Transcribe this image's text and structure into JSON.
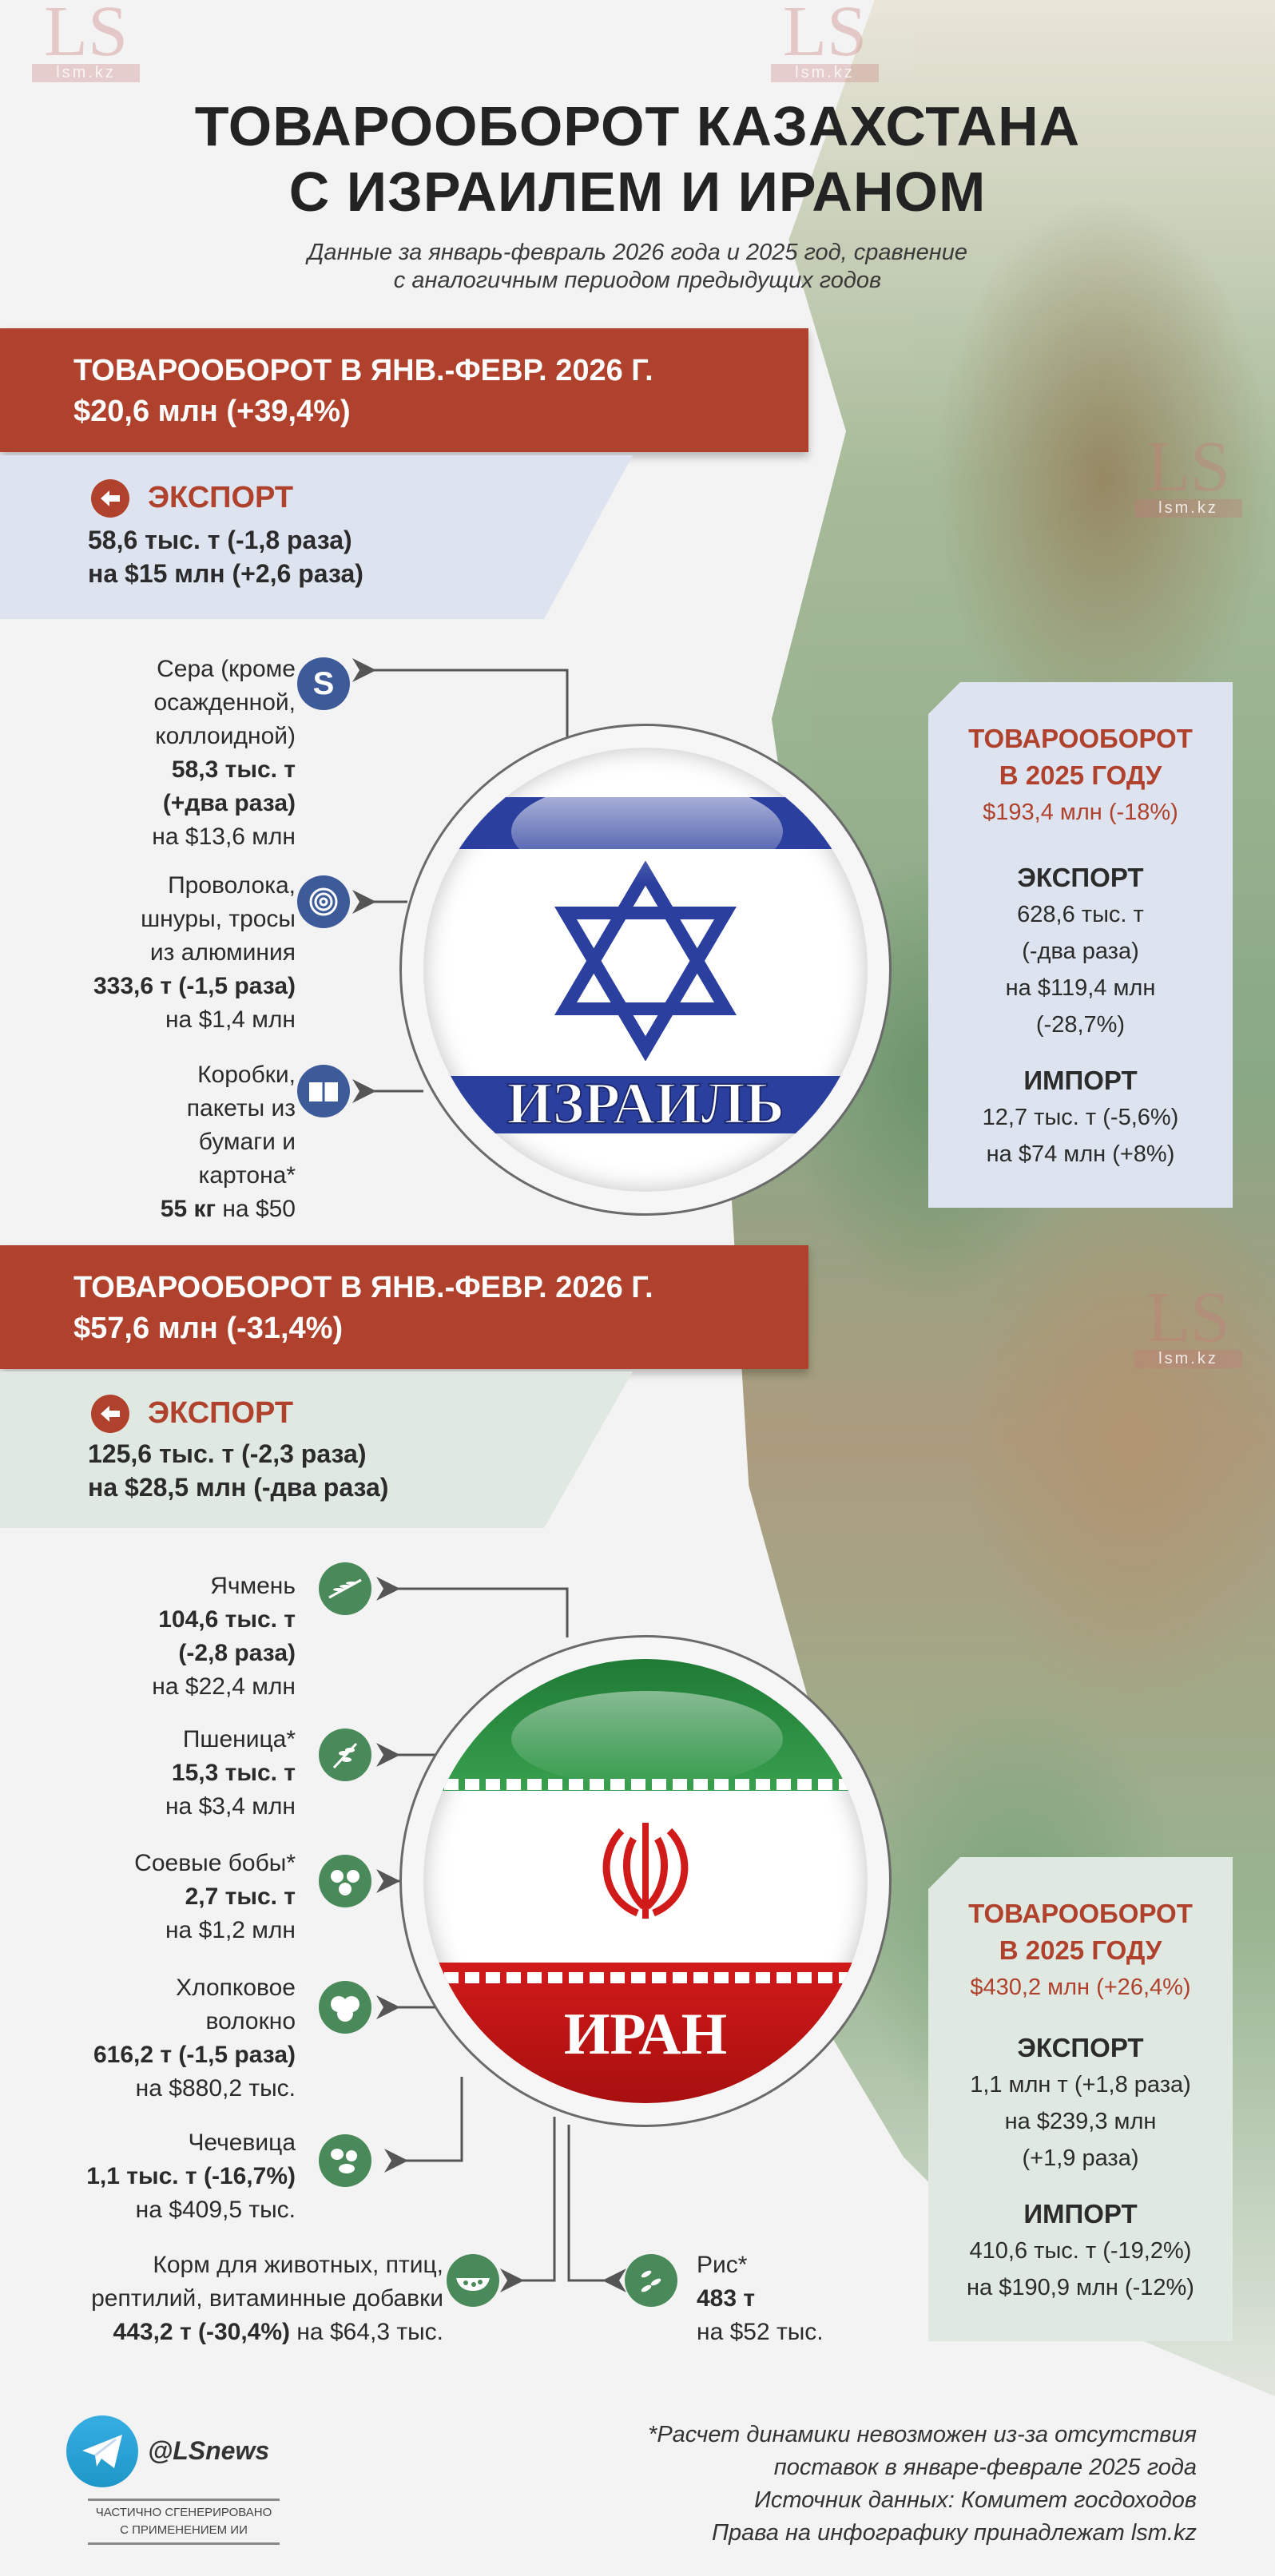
{
  "header": {
    "title_line1": "ТОВАРООБОРОТ КАЗАХСТАНА",
    "title_line2": "С ИЗРАИЛЕМ И ИРАНОМ",
    "subtitle_line1": "Данные за январь-февраль 2026 года и 2025 год, сравнение",
    "subtitle_line2": "с аналогичным периодом предыдущих годов"
  },
  "watermark": {
    "logo": "LS",
    "site": "lsm.kz"
  },
  "colors": {
    "accent_red": "#b0412c",
    "israel_blue": "#2b3f9e",
    "iran_green": "#2e8b45",
    "iran_red": "#d11a1a",
    "israel_box": "#dde4ef",
    "iran_box": "#dfe9e2",
    "icon_blue": "#3d5a99",
    "icon_green": "#4a8a5a"
  },
  "israel": {
    "banner_line1": "ТОВАРООБОРОТ В ЯНВ.-ФЕВР. 2026 Г.",
    "banner_line2": "$20,6 млн (+39,4%)",
    "export_label": "ЭКСПОРТ",
    "export_line1": "58,6 тыс. т (-1,8 раза)",
    "export_line2": "на $15 млн (+2,6 раза)",
    "country_name": "ИЗРАИЛЬ",
    "items": [
      {
        "icon": "sulfur-icon",
        "lines": [
          {
            "r": "Сера (кроме"
          },
          {
            "r": "осажденной,"
          },
          {
            "r": "коллоидной)"
          },
          {
            "b": "58,3 тыс. т"
          },
          {
            "b": "(+два раза)"
          },
          {
            "r": "на $13,6 млн"
          }
        ]
      },
      {
        "icon": "wire-coil-icon",
        "lines": [
          {
            "r": "Проволока,"
          },
          {
            "r": "шнуры, тросы"
          },
          {
            "r": "из алюминия"
          },
          {
            "b": "333,6 т (-1,5 раза)"
          },
          {
            "r": "на $1,4 млн"
          }
        ]
      },
      {
        "icon": "box-icon",
        "lines": [
          {
            "r": "Коробки,"
          },
          {
            "r": "пакеты из"
          },
          {
            "r": "бумаги и"
          },
          {
            "r": "картона*"
          },
          {
            "b": "55 кг",
            "r": " на $50"
          }
        ]
      }
    ],
    "summary": {
      "title1": "ТОВАРООБОРОТ",
      "title2": "В 2025 ГОДУ",
      "total": "$193,4 млн (-18%)",
      "export_label": "ЭКСПОРТ",
      "export_lines": [
        "628,6 тыс. т",
        "(-два раза)",
        "на $119,4 млн",
        "(-28,7%)"
      ],
      "import_label": "ИМПОРТ",
      "import_lines": [
        "12,7 тыс. т (-5,6%)",
        "на $74 млн (+8%)"
      ]
    }
  },
  "iran": {
    "banner_line1": "ТОВАРООБОРОТ В ЯНВ.-ФЕВР. 2026 Г.",
    "banner_line2": "$57,6 млн (-31,4%)",
    "export_label": "ЭКСПОРТ",
    "export_line1": "125,6 тыс. т (-2,3 раза)",
    "export_line2": "на $28,5 млн (-два раза)",
    "country_name": "ИРАН",
    "items": [
      {
        "icon": "barley-icon",
        "lines": [
          {
            "r": "Ячмень"
          },
          {
            "b": "104,6 тыс. т"
          },
          {
            "b": "(-2,8 раза)"
          },
          {
            "r": "на $22,4 млн"
          }
        ]
      },
      {
        "icon": "wheat-icon",
        "lines": [
          {
            "r": "Пшеница*"
          },
          {
            "b": "15,3 тыс. т"
          },
          {
            "r": "на $3,4 млн"
          }
        ]
      },
      {
        "icon": "soybean-icon",
        "lines": [
          {
            "r": "Соевые бобы*"
          },
          {
            "b": "2,7 тыс. т"
          },
          {
            "r": "на $1,2 млн"
          }
        ]
      },
      {
        "icon": "cotton-icon",
        "lines": [
          {
            "r": "Хлопковое"
          },
          {
            "r": "волокно"
          },
          {
            "b": "616,2 т (-1,5 раза)"
          },
          {
            "r": "на $880,2 тыс."
          }
        ]
      },
      {
        "icon": "lentil-icon",
        "lines": [
          {
            "r": "Чечевица"
          },
          {
            "b": "1,1 тыс. т (-16,7%)"
          },
          {
            "r": "на $409,5 тыс."
          }
        ]
      },
      {
        "icon": "animal-feed-icon",
        "lines": [
          {
            "r": "Корм для животных, птиц,"
          },
          {
            "r": "рептилий, витаминные добавки"
          },
          {
            "b": "443,2 т (-30,4%)",
            "r": " на $64,3 тыс."
          }
        ]
      },
      {
        "icon": "rice-icon",
        "lines": [
          {
            "r": "Рис*"
          },
          {
            "b": "483 т"
          },
          {
            "r": "на $52 тыс."
          }
        ]
      }
    ],
    "summary": {
      "title1": "ТОВАРООБОРОТ",
      "title2": "В 2025 ГОДУ",
      "total": "$430,2 млн (+26,4%)",
      "export_label": "ЭКСПОРТ",
      "export_lines": [
        "1,1 млн т (+1,8 раза)",
        "на $239,3 млн",
        "(+1,9 раза)"
      ],
      "import_label": "ИМПОРТ",
      "import_lines": [
        "410,6 тыс. т (-19,2%)",
        "на $190,9 млн (-12%)"
      ]
    }
  },
  "footer": {
    "telegram_handle": "@LSnews",
    "ai_note_line1": "ЧАСТИЧНО СГЕНЕРИРОВАНО",
    "ai_note_line2": "С ПРИМЕНЕНИЕМ ИИ",
    "notes": [
      "*Расчет динамики невозможен из-за отсутствия",
      "поставок в январе-феврале 2025 года",
      "Источник данных: Комитет госдоходов",
      "Права на инфографику принадлежат lsm.kz"
    ]
  }
}
